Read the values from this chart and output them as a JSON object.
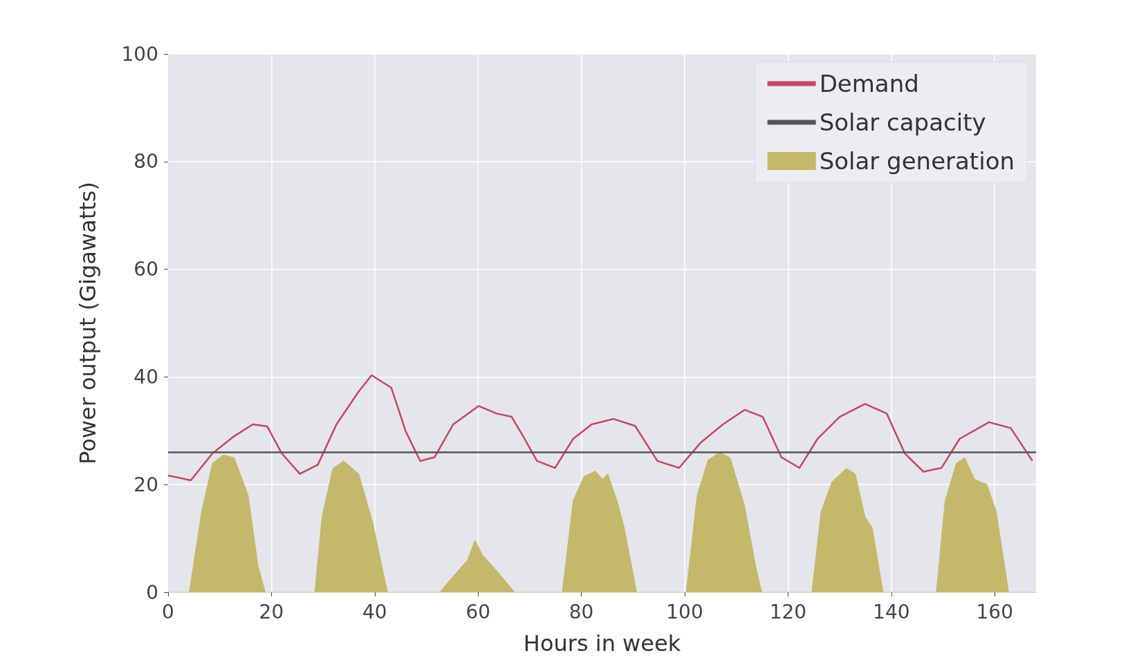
{
  "chart_data": {
    "type": "line",
    "xlabel": "Hours in week",
    "ylabel": "Power output (Gigawatts)",
    "xlim": [
      0,
      168
    ],
    "ylim": [
      0,
      100
    ],
    "xticks": [
      0,
      20,
      40,
      60,
      80,
      100,
      120,
      140,
      160
    ],
    "yticks": [
      0,
      20,
      40,
      60,
      80,
      100
    ],
    "grid": true,
    "legend": "top right",
    "series": [
      {
        "name": "Demand",
        "color": "#c8455f",
        "x": [
          0,
          4.4,
          8.6,
          12.8,
          16.4,
          19.2,
          22,
          25.5,
          29,
          32.6,
          36.9,
          39.4,
          43.2,
          46,
          48.8,
          51.6,
          55.2,
          60.1,
          63.6,
          66.5,
          68.6,
          71.4,
          74.9,
          78.4,
          82,
          86.2,
          90.4,
          94.7,
          98.9,
          103.1,
          107.4,
          111.6,
          115.1,
          118.7,
          122.2,
          125.7,
          130,
          134.9,
          139.1,
          142.6,
          146.2,
          149.7,
          153.2,
          158.9,
          163.1,
          167.3
        ],
        "values": [
          21.7,
          20.8,
          25.8,
          29,
          31.2,
          30.8,
          25.8,
          22,
          23.7,
          31.2,
          37.3,
          40.3,
          38,
          29.9,
          24.4,
          25.1,
          31.2,
          34.6,
          33.2,
          32.6,
          29.2,
          24.4,
          23.1,
          28.5,
          31.2,
          32.2,
          30.9,
          24.4,
          23.1,
          27.8,
          31.2,
          33.9,
          32.6,
          25.1,
          23.1,
          28.5,
          32.6,
          35,
          33.2,
          25.8,
          22.4,
          23.1,
          28.5,
          31.6,
          30.5,
          24.4
        ]
      },
      {
        "name": "Solar capacity",
        "color": "#555555",
        "x": [
          0,
          168
        ],
        "values": [
          26,
          26
        ]
      },
      {
        "name": "Solar generation",
        "color": "#c4b86a",
        "type": "area",
        "x": [
          0,
          4.1,
          6.5,
          8.6,
          10.7,
          12.8,
          15.5,
          17.4,
          18.8,
          28.4,
          29.8,
          31.9,
          34,
          36.9,
          39.6,
          41.8,
          42.5,
          52.6,
          55.2,
          58,
          59.4,
          60.8,
          63.6,
          67.1,
          76.3,
          78.4,
          80.5,
          82.7,
          84.1,
          85.1,
          86.9,
          88.3,
          90.7,
          100.3,
          102.4,
          104.5,
          106.7,
          108.8,
          111.6,
          113.7,
          114.9,
          124.6,
          126.4,
          128.5,
          131.3,
          133,
          134.9,
          136.3,
          138.4,
          148.7,
          150.4,
          152.6,
          154.2,
          156.1,
          158.5,
          160.3,
          162.7,
          168
        ],
        "values": [
          0,
          0,
          15,
          24,
          25.5,
          25,
          18,
          5,
          0,
          0,
          14,
          23,
          24.4,
          22,
          13,
          3,
          0,
          0,
          3,
          6,
          9.7,
          7,
          4,
          0,
          0,
          17,
          21.5,
          22.5,
          21,
          22,
          17,
          12,
          0,
          0,
          18,
          24.5,
          26,
          25,
          16,
          5,
          0,
          0,
          15,
          20.5,
          23,
          22,
          14,
          12,
          0,
          0,
          17,
          24,
          25,
          21,
          20,
          15,
          0,
          0
        ]
      }
    ]
  }
}
